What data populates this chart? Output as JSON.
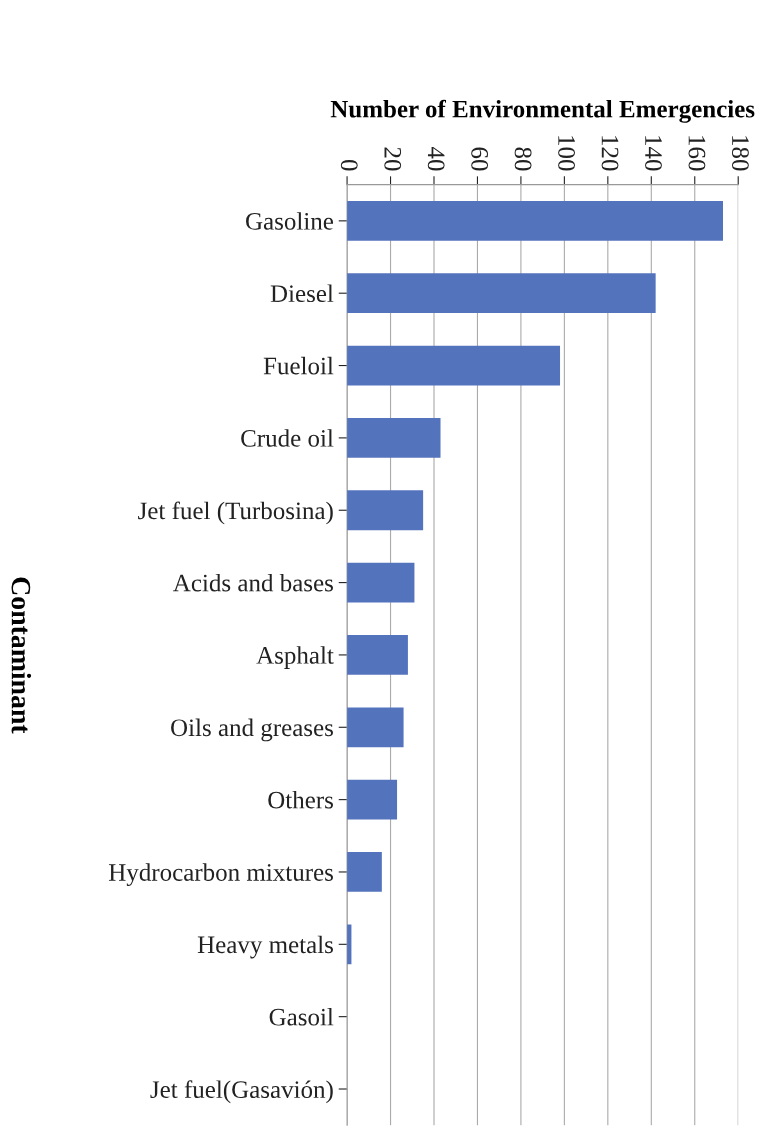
{
  "chart_data": {
    "type": "bar",
    "orientation": "horizontal",
    "xlabel": "Number of Environmental Emergencies",
    "ylabel": "Contaminant",
    "categories": [
      "Gasoline",
      "Diesel",
      "Fueloil",
      "Crude oil",
      "Jet fuel (Turbosina)",
      "Acids and bases",
      "Asphalt",
      "Oils and greases",
      "Others",
      "Hydrocarbon mixtures",
      "Heavy metals",
      "Gasoil",
      "Jet fuel(Gasavión)"
    ],
    "values": [
      173,
      142,
      98,
      43,
      35,
      31,
      28,
      26,
      23,
      16,
      2,
      0,
      0
    ],
    "color": "#5473bd",
    "xlim": [
      0,
      180
    ],
    "xticks": [
      0,
      20,
      40,
      60,
      80,
      100,
      120,
      140,
      160,
      180
    ],
    "grid": "x"
  }
}
